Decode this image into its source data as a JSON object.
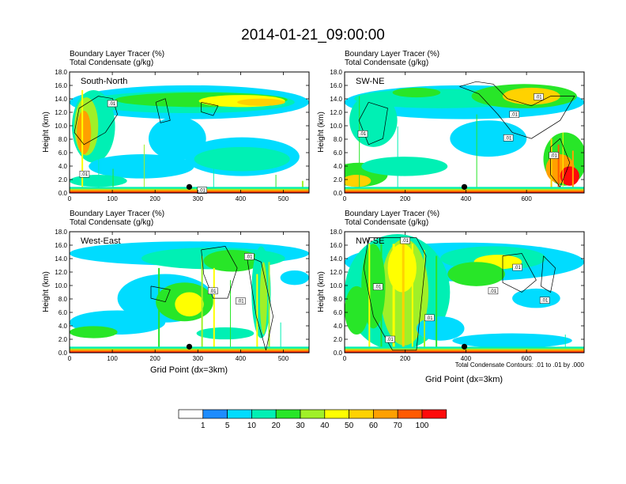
{
  "figure": {
    "title": "2014-01-21_09:00:00",
    "footnote": "Total Condensate Contours: .01 to .01 by .000"
  },
  "colorbar": {
    "labels": [
      "1",
      "5",
      "10",
      "20",
      "30",
      "40",
      "50",
      "60",
      "70",
      "100"
    ],
    "colors": [
      "#ffffff",
      "#1e8cff",
      "#00dcff",
      "#00f0b4",
      "#28e628",
      "#a0f028",
      "#ffff00",
      "#ffd200",
      "#ffa000",
      "#ff5a00",
      "#ff0a0a"
    ]
  },
  "chart_data": [
    {
      "type": "heatmap",
      "name": "South-North",
      "header": [
        "Boundary Layer Tracer   (%)",
        "Total Condensate   (g/kg)"
      ],
      "xlabel": "",
      "ylabel": "Height (km)",
      "xlim": [
        0,
        560
      ],
      "ylim": [
        0,
        18
      ],
      "xticks": [
        0,
        100,
        200,
        300,
        400,
        500
      ],
      "yticks": [
        "0.0",
        "2.0",
        "4.0",
        "6.0",
        "8.0",
        "10.0",
        "12.0",
        "14.0",
        "16.0",
        "18.0"
      ],
      "marker": {
        "x": 280,
        "y": 0.9
      },
      "contour_labels": [
        {
          "x": 100,
          "y": 13.3,
          "text": ".01"
        },
        {
          "x": 35,
          "y": 2.8,
          "text": ".01"
        },
        {
          "x": 310,
          "y": 0.4,
          "text": ".01"
        }
      ]
    },
    {
      "type": "heatmap",
      "name": "SW-NE",
      "header": [
        "Boundary Layer Tracer   (%)",
        "Total Condensate   (g/kg)"
      ],
      "xlabel": "",
      "ylabel": "Height (km)",
      "xlim": [
        0,
        790
      ],
      "ylim": [
        0,
        18
      ],
      "xticks": [
        0,
        200,
        400,
        600
      ],
      "yticks": [
        "0.0",
        "2.0",
        "4.0",
        "6.0",
        "8.0",
        "10.0",
        "12.0",
        "14.0",
        "16.0",
        "18.0"
      ],
      "marker": {
        "x": 395,
        "y": 0.9
      },
      "contour_labels": [
        {
          "x": 560,
          "y": 11.7,
          "text": ".01"
        },
        {
          "x": 640,
          "y": 14.3,
          "text": ".01"
        },
        {
          "x": 60,
          "y": 8.8,
          "text": ".01"
        },
        {
          "x": 540,
          "y": 8.2,
          "text": ".01"
        },
        {
          "x": 690,
          "y": 5.6,
          "text": ".01"
        }
      ]
    },
    {
      "type": "heatmap",
      "name": "West-East",
      "header": [
        "Boundary Layer Tracer   (%)",
        "Total Condensate   (g/kg)"
      ],
      "xlabel": "Grid Point (dx=3km)",
      "ylabel": "Height (km)",
      "xlim": [
        0,
        560
      ],
      "ylim": [
        0,
        18
      ],
      "xticks": [
        0,
        100,
        200,
        300,
        400,
        500
      ],
      "yticks": [
        "0.0",
        "2.0",
        "4.0",
        "6.0",
        "8.0",
        "10.0",
        "12.0",
        "14.0",
        "16.0",
        "18.0"
      ],
      "marker": {
        "x": 280,
        "y": 0.9
      },
      "contour_labels": [
        {
          "x": 420,
          "y": 14.3,
          "text": ".01"
        },
        {
          "x": 335,
          "y": 9.2,
          "text": ".01"
        },
        {
          "x": 400,
          "y": 7.7,
          "text": ".01"
        }
      ]
    },
    {
      "type": "heatmap",
      "name": "NW-SE",
      "header": [
        "Boundary Layer Tracer   (%)",
        "Total Condensate   (g/kg)"
      ],
      "xlabel": "Grid Point (dx=3km)",
      "ylabel": "Height (km)",
      "xlim": [
        0,
        790
      ],
      "ylim": [
        0,
        18
      ],
      "xticks": [
        0,
        200,
        400,
        600
      ],
      "yticks": [
        "0.0",
        "2.0",
        "4.0",
        "6.0",
        "8.0",
        "10.0",
        "12.0",
        "14.0",
        "16.0",
        "18.0"
      ],
      "marker": {
        "x": 395,
        "y": 0.9
      },
      "contour_labels": [
        {
          "x": 200,
          "y": 16.7,
          "text": ".01"
        },
        {
          "x": 570,
          "y": 12.7,
          "text": ".01"
        },
        {
          "x": 110,
          "y": 9.8,
          "text": ".01"
        },
        {
          "x": 490,
          "y": 9.2,
          "text": ".01"
        },
        {
          "x": 660,
          "y": 7.8,
          "text": ".01"
        },
        {
          "x": 280,
          "y": 5.2,
          "text": ".01"
        },
        {
          "x": 150,
          "y": 2.0,
          "text": ".01"
        }
      ]
    }
  ]
}
